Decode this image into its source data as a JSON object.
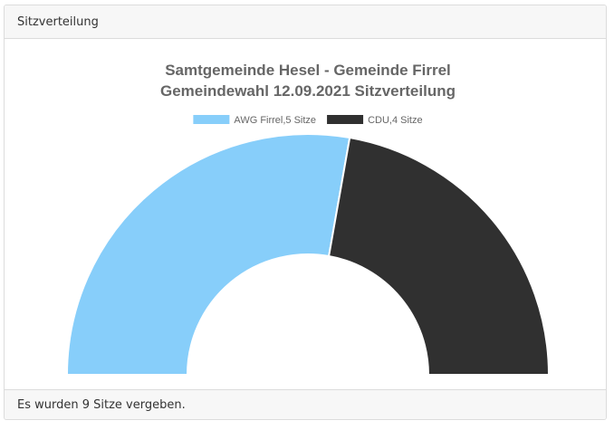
{
  "panel": {
    "header": "Sitzverteilung",
    "footer": "Es wurden 9 Sitze vergeben."
  },
  "chart_data": {
    "type": "pie",
    "variant": "half-doughnut",
    "title": [
      "Samtgemeinde Hesel - Gemeinde Firrel",
      "Gemeindewahl 12.09.2021 Sitzverteilung"
    ],
    "legend_position": "top",
    "series": [
      {
        "name": "AWG Firrel,5 Sitze",
        "value": 5,
        "color": "#87cefa"
      },
      {
        "name": "CDU,4 Sitze",
        "value": 4,
        "color": "#303030"
      }
    ]
  }
}
